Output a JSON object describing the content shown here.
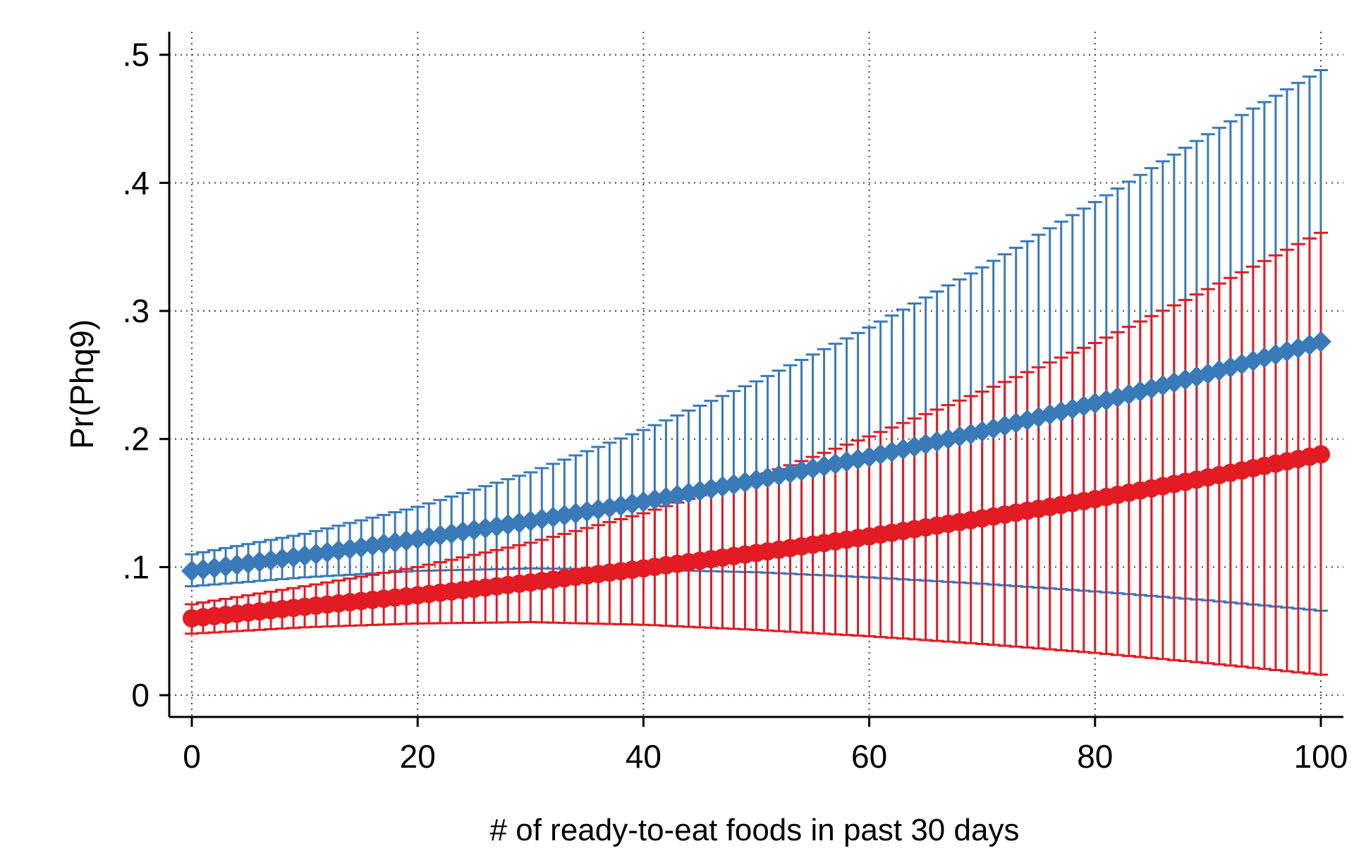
{
  "chart_data": {
    "type": "line",
    "title": "",
    "xlabel": "# of ready-to-eat foods in past 30 days",
    "ylabel": "Pr(Phq9)",
    "xlim": [
      -2,
      102
    ],
    "ylim": [
      -0.017,
      0.518
    ],
    "x_ticks": [
      0,
      20,
      40,
      60,
      80,
      100
    ],
    "x_tick_labels": [
      "0",
      "20",
      "40",
      "60",
      "80",
      "100"
    ],
    "y_ticks": [
      0,
      0.1,
      0.2,
      0.3,
      0.4,
      0.5
    ],
    "y_tick_labels": [
      "0",
      ".1",
      ".2",
      ".3",
      ".4",
      ".5"
    ],
    "grid": true,
    "legend": "none",
    "x": [
      0,
      10,
      20,
      30,
      40,
      50,
      60,
      70,
      80,
      90,
      100
    ],
    "series": [
      {
        "color": "#3a7ab8",
        "marker": "diamond",
        "values": [
          0.097,
          0.109,
          0.122,
          0.136,
          0.151,
          0.168,
          0.186,
          0.206,
          0.228,
          0.251,
          0.276
        ],
        "ci_lower": [
          0.085,
          0.092,
          0.097,
          0.099,
          0.098,
          0.096,
          0.092,
          0.087,
          0.081,
          0.074,
          0.066
        ],
        "ci_upper": [
          0.11,
          0.126,
          0.147,
          0.174,
          0.207,
          0.245,
          0.287,
          0.334,
          0.385,
          0.438,
          0.488
        ]
      },
      {
        "color": "#e31b23",
        "marker": "circle",
        "values": [
          0.06,
          0.069,
          0.078,
          0.088,
          0.099,
          0.111,
          0.124,
          0.138,
          0.153,
          0.17,
          0.188
        ],
        "ci_lower": [
          0.048,
          0.053,
          0.056,
          0.057,
          0.055,
          0.051,
          0.046,
          0.04,
          0.033,
          0.025,
          0.016
        ],
        "ci_upper": [
          0.071,
          0.085,
          0.1,
          0.119,
          0.142,
          0.17,
          0.202,
          0.237,
          0.275,
          0.317,
          0.361
        ]
      }
    ]
  }
}
